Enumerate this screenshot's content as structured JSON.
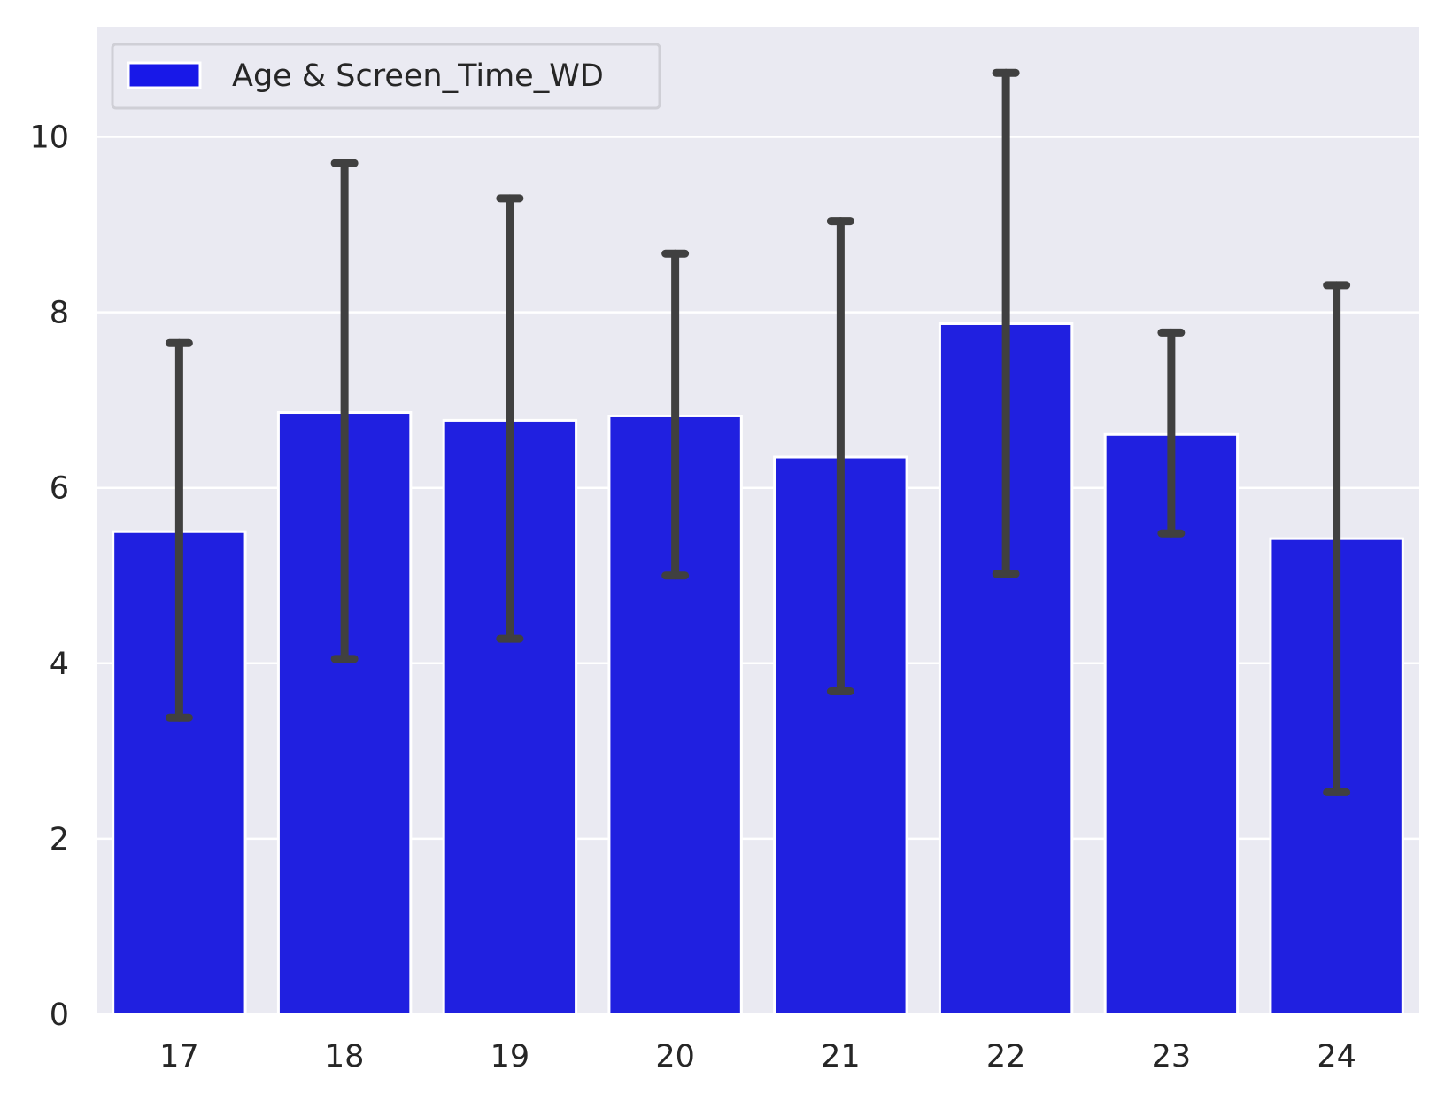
{
  "chart_data": {
    "type": "bar",
    "categories": [
      "17",
      "18",
      "19",
      "20",
      "21",
      "22",
      "23",
      "24"
    ],
    "series": [
      {
        "name": "Age & Screen_Time_WD",
        "values": [
          5.5,
          6.86,
          6.77,
          6.82,
          6.35,
          7.87,
          6.61,
          5.42
        ],
        "error_low": [
          3.38,
          4.05,
          4.28,
          5.0,
          3.68,
          5.02,
          5.48,
          2.53
        ],
        "error_high": [
          7.65,
          9.7,
          9.3,
          8.67,
          9.04,
          10.73,
          7.77,
          8.31
        ]
      }
    ],
    "y_ticks": [
      "0",
      "2",
      "4",
      "6",
      "8",
      "10"
    ],
    "ylim": [
      0,
      11.25
    ],
    "grid": true,
    "legend": {
      "position": "top-left",
      "label": "Age & Screen_Time_WD"
    },
    "colors": {
      "bar": "#2020e0",
      "legend_swatch": "#1818e8",
      "plot_background": "#eaeaf2",
      "gridline": "#ffffff",
      "error_bar": "#404040"
    }
  }
}
